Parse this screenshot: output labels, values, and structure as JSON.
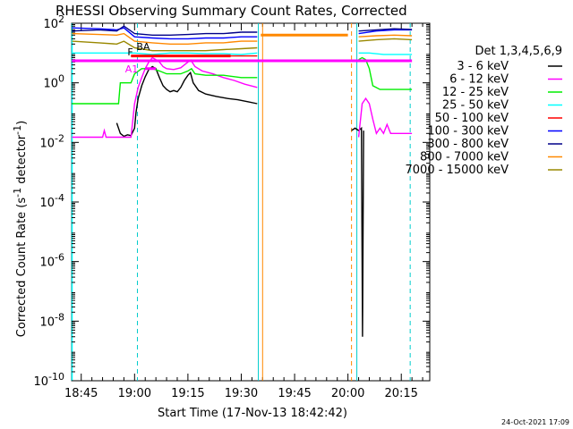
{
  "chart_data": {
    "type": "line",
    "title": "RHESSI Observing Summary Count Rates, Corrected",
    "xlabel": "Start Time (17-Nov-13 18:42:42)",
    "ylabel_main": "Corrected Count Rate (s",
    "ylabel_sup1": "-1",
    "ylabel_mid": " detector",
    "ylabel_sup2": "-1",
    "ylabel_end": ")",
    "y_scale": "log",
    "ylim": [
      1e-10,
      100
    ],
    "xlim_minutes": [
      -2.7,
      98
    ],
    "x_ticks": [
      {
        "t": 0,
        "label": "18:45"
      },
      {
        "t": 15,
        "label": "19:00"
      },
      {
        "t": 30,
        "label": "19:15"
      },
      {
        "t": 45,
        "label": "19:30"
      },
      {
        "t": 60,
        "label": "19:45"
      },
      {
        "t": 75,
        "label": "20:00"
      },
      {
        "t": 90,
        "label": "20:15"
      }
    ],
    "y_ticks": [
      {
        "exp": 2,
        "base": "10",
        "sup": "2"
      },
      {
        "exp": 0,
        "base": "10",
        "sup": "0"
      },
      {
        "exp": -2,
        "base": "10",
        "sup": "-2"
      },
      {
        "exp": -4,
        "base": "10",
        "sup": "-4"
      },
      {
        "exp": -6,
        "base": "10",
        "sup": "-6"
      },
      {
        "exp": -8,
        "base": "10",
        "sup": "-8"
      },
      {
        "exp": -10,
        "base": "10",
        "sup": "-10"
      }
    ],
    "legend_title": "Det 1,3,4,5,6,9",
    "legend_position": "right",
    "series": [
      {
        "name": "3 - 6 keV",
        "color": "#000000",
        "segments": [
          [
            [
              10,
              0.045
            ],
            [
              11,
              0.02
            ],
            [
              12,
              0.016
            ],
            [
              13,
              0.018
            ],
            [
              14,
              0.017
            ],
            [
              15,
              0.03
            ],
            [
              15.4,
              0.1
            ],
            [
              16,
              0.3
            ],
            [
              17,
              0.8
            ],
            [
              18,
              1.6
            ],
            [
              19,
              2.8
            ],
            [
              20,
              3.5
            ],
            [
              21,
              3.0
            ],
            [
              22,
              1.5
            ],
            [
              23,
              0.8
            ],
            [
              24,
              0.6
            ],
            [
              25,
              0.5
            ],
            [
              26,
              0.55
            ],
            [
              27,
              0.5
            ],
            [
              28,
              0.7
            ],
            [
              29,
              1.2
            ],
            [
              30,
              1.8
            ],
            [
              30.7,
              2.2
            ],
            [
              31.5,
              1.0
            ],
            [
              33,
              0.55
            ],
            [
              35,
              0.42
            ],
            [
              38,
              0.35
            ],
            [
              41,
              0.3
            ],
            [
              44,
              0.27
            ],
            [
              47,
              0.23
            ],
            [
              49.5,
              0.2
            ]
          ],
          [
            [
              76,
              0.025
            ],
            [
              77,
              0.03
            ],
            [
              78,
              0.025
            ],
            [
              78.8,
              0.03
            ],
            [
              79.1,
              3e-09
            ],
            [
              79.4,
              0.025
            ]
          ]
        ]
      },
      {
        "name": "6 - 12 keV",
        "color": "#ff00ff",
        "segments": [
          [
            [
              -2.6,
              0.015
            ],
            [
              3,
              0.015
            ],
            [
              6,
              0.015
            ],
            [
              6.5,
              0.025
            ],
            [
              7,
              0.015
            ],
            [
              10,
              0.015
            ],
            [
              12,
              0.015
            ],
            [
              14,
              0.015
            ],
            [
              15,
              0.2
            ],
            [
              16,
              0.7
            ],
            [
              17,
              1.5
            ],
            [
              18,
              3
            ],
            [
              19,
              5
            ],
            [
              20,
              7
            ],
            [
              21,
              6
            ],
            [
              22,
              5
            ],
            [
              23,
              3.5
            ],
            [
              24,
              3
            ],
            [
              26,
              2.8
            ],
            [
              28,
              3.2
            ],
            [
              30,
              5
            ],
            [
              30.8,
              5.8
            ],
            [
              32,
              3.5
            ],
            [
              34,
              2.5
            ],
            [
              37,
              2
            ],
            [
              40,
              1.5
            ],
            [
              43,
              1.2
            ],
            [
              46,
              0.9
            ],
            [
              49.5,
              0.7
            ]
          ],
          [
            [
              78,
              0.015
            ],
            [
              79,
              0.2
            ],
            [
              80,
              0.3
            ],
            [
              81,
              0.2
            ],
            [
              82,
              0.06
            ],
            [
              83,
              0.02
            ],
            [
              84,
              0.03
            ],
            [
              85,
              0.02
            ],
            [
              86,
              0.04
            ],
            [
              87,
              0.02
            ],
            [
              90,
              0.02
            ],
            [
              93,
              0.02
            ]
          ]
        ]
      },
      {
        "name": "12 - 25 keV",
        "color": "#00ee00",
        "segments": [
          [
            [
              -2.6,
              0.2
            ],
            [
              0,
              0.2
            ],
            [
              3,
              0.2
            ],
            [
              6,
              0.2
            ],
            [
              9,
              0.2
            ],
            [
              10.5,
              0.2
            ],
            [
              11,
              1
            ],
            [
              14,
              1
            ],
            [
              15,
              2
            ],
            [
              17,
              3
            ],
            [
              20,
              3
            ],
            [
              22,
              2.5
            ],
            [
              24,
              2
            ],
            [
              26,
              2
            ],
            [
              28,
              2
            ],
            [
              30,
              2.5
            ],
            [
              31,
              3
            ],
            [
              32,
              2
            ],
            [
              35,
              1.8
            ],
            [
              40,
              1.8
            ],
            [
              45,
              1.5
            ],
            [
              49.5,
              1.5
            ]
          ],
          [
            [
              78,
              6
            ],
            [
              79,
              7
            ],
            [
              80,
              6
            ],
            [
              81,
              3
            ],
            [
              82,
              0.8
            ],
            [
              84,
              0.6
            ],
            [
              88,
              0.6
            ],
            [
              92,
              0.6
            ],
            [
              93,
              0.6
            ]
          ]
        ]
      },
      {
        "name": "25 - 50 keV",
        "color": "#00ffff",
        "segments": [
          [
            [
              -2.6,
              10
            ],
            [
              0,
              10
            ],
            [
              5,
              10
            ],
            [
              10,
              10
            ],
            [
              15,
              10
            ],
            [
              20,
              9
            ],
            [
              25,
              10
            ],
            [
              30,
              10
            ],
            [
              35,
              9.5
            ],
            [
              40,
              9.5
            ],
            [
              45,
              9
            ],
            [
              49.5,
              10
            ]
          ],
          [
            [
              78,
              10
            ],
            [
              81,
              10
            ],
            [
              85,
              9
            ],
            [
              90,
              9
            ],
            [
              93,
              9
            ]
          ]
        ]
      },
      {
        "name": "50 - 100 keV",
        "color": "#ff0000",
        "segments": [
          [
            [
              14,
              8
            ],
            [
              20,
              8
            ],
            [
              25,
              8
            ],
            [
              30,
              8
            ],
            [
              35,
              8
            ],
            [
              40,
              8
            ],
            [
              45,
              8
            ],
            [
              49.5,
              8
            ]
          ]
        ]
      },
      {
        "name": "100 - 300 keV",
        "color": "#0000ff",
        "segments": [
          [
            [
              -2.6,
              70
            ],
            [
              5,
              65
            ],
            [
              10,
              60
            ],
            [
              12,
              70
            ],
            [
              15,
              35
            ],
            [
              20,
              32
            ],
            [
              25,
              30
            ],
            [
              30,
              30
            ],
            [
              35,
              32
            ],
            [
              40,
              32
            ],
            [
              45,
              35
            ],
            [
              49.5,
              35
            ]
          ],
          [
            [
              78,
              45
            ],
            [
              83,
              55
            ],
            [
              88,
              60
            ],
            [
              93,
              60
            ]
          ]
        ]
      },
      {
        "name": "300 - 800 keV",
        "color": "#000088",
        "segments": [
          [
            [
              -2.6,
              55
            ],
            [
              5,
              60
            ],
            [
              10,
              55
            ],
            [
              12,
              80
            ],
            [
              15,
              45
            ],
            [
              20,
              40
            ],
            [
              25,
              40
            ],
            [
              30,
              42
            ],
            [
              35,
              45
            ],
            [
              40,
              45
            ],
            [
              45,
              50
            ],
            [
              49.5,
              50
            ]
          ],
          [
            [
              78,
              55
            ],
            [
              83,
              60
            ],
            [
              88,
              65
            ],
            [
              93,
              62
            ]
          ]
        ]
      },
      {
        "name": "800 - 7000 keV",
        "color": "#ff8800",
        "segments": [
          [
            [
              -2.6,
              45
            ],
            [
              5,
              42
            ],
            [
              10,
              40
            ],
            [
              12,
              45
            ],
            [
              15,
              25
            ],
            [
              20,
              22
            ],
            [
              25,
              20
            ],
            [
              30,
              20
            ],
            [
              35,
              22
            ],
            [
              40,
              22
            ],
            [
              45,
              25
            ],
            [
              49.5,
              25
            ]
          ],
          [
            [
              50.5,
              40
            ],
            [
              60,
              40
            ],
            [
              70,
              40
            ],
            [
              75,
              40
            ]
          ],
          [
            [
              78,
              35
            ],
            [
              83,
              38
            ],
            [
              88,
              40
            ],
            [
              93,
              38
            ]
          ]
        ]
      },
      {
        "name": "7000 - 15000 keV",
        "color": "#998800",
        "segments": [
          [
            [
              -2.6,
              25
            ],
            [
              5,
              22
            ],
            [
              10,
              20
            ],
            [
              12,
              25
            ],
            [
              15,
              15
            ],
            [
              20,
              12
            ],
            [
              25,
              12
            ],
            [
              30,
              12
            ],
            [
              35,
              12
            ],
            [
              40,
              13
            ],
            [
              45,
              14
            ],
            [
              49.5,
              15
            ]
          ],
          [
            [
              78,
              25
            ],
            [
              83,
              28
            ],
            [
              88,
              30
            ],
            [
              93,
              28
            ]
          ]
        ]
      }
    ],
    "attenuator_flag": {
      "label": "A1",
      "t": 16.5,
      "level": 3,
      "span": [
        18,
        21
      ]
    },
    "flare_flag": {
      "label": "F",
      "t": 13,
      "level": 11
    },
    "magenta_band": {
      "level": 5.5,
      "span": [
        -2.6,
        93
      ]
    },
    "red_band": {
      "level": 8,
      "span": [
        14,
        42
      ]
    },
    "bar_label_fragment": "BA",
    "vlines": [
      {
        "t": 15.8,
        "color": "#00cccc",
        "style": "dashed"
      },
      {
        "t": 49.8,
        "color": "#00cccc",
        "style": "solid"
      },
      {
        "t": 51.0,
        "color": "#ff8800",
        "style": "solid"
      },
      {
        "t": 77.5,
        "color": "#00cccc",
        "style": "solid"
      },
      {
        "t": 76.0,
        "color": "#ff8800",
        "style": "dashed"
      },
      {
        "t": 92.5,
        "color": "#00cccc",
        "style": "dashed"
      }
    ],
    "left_axis_color": "#00ffff"
  },
  "footer": {
    "timestamp": "24-Oct-2021 17:09"
  }
}
